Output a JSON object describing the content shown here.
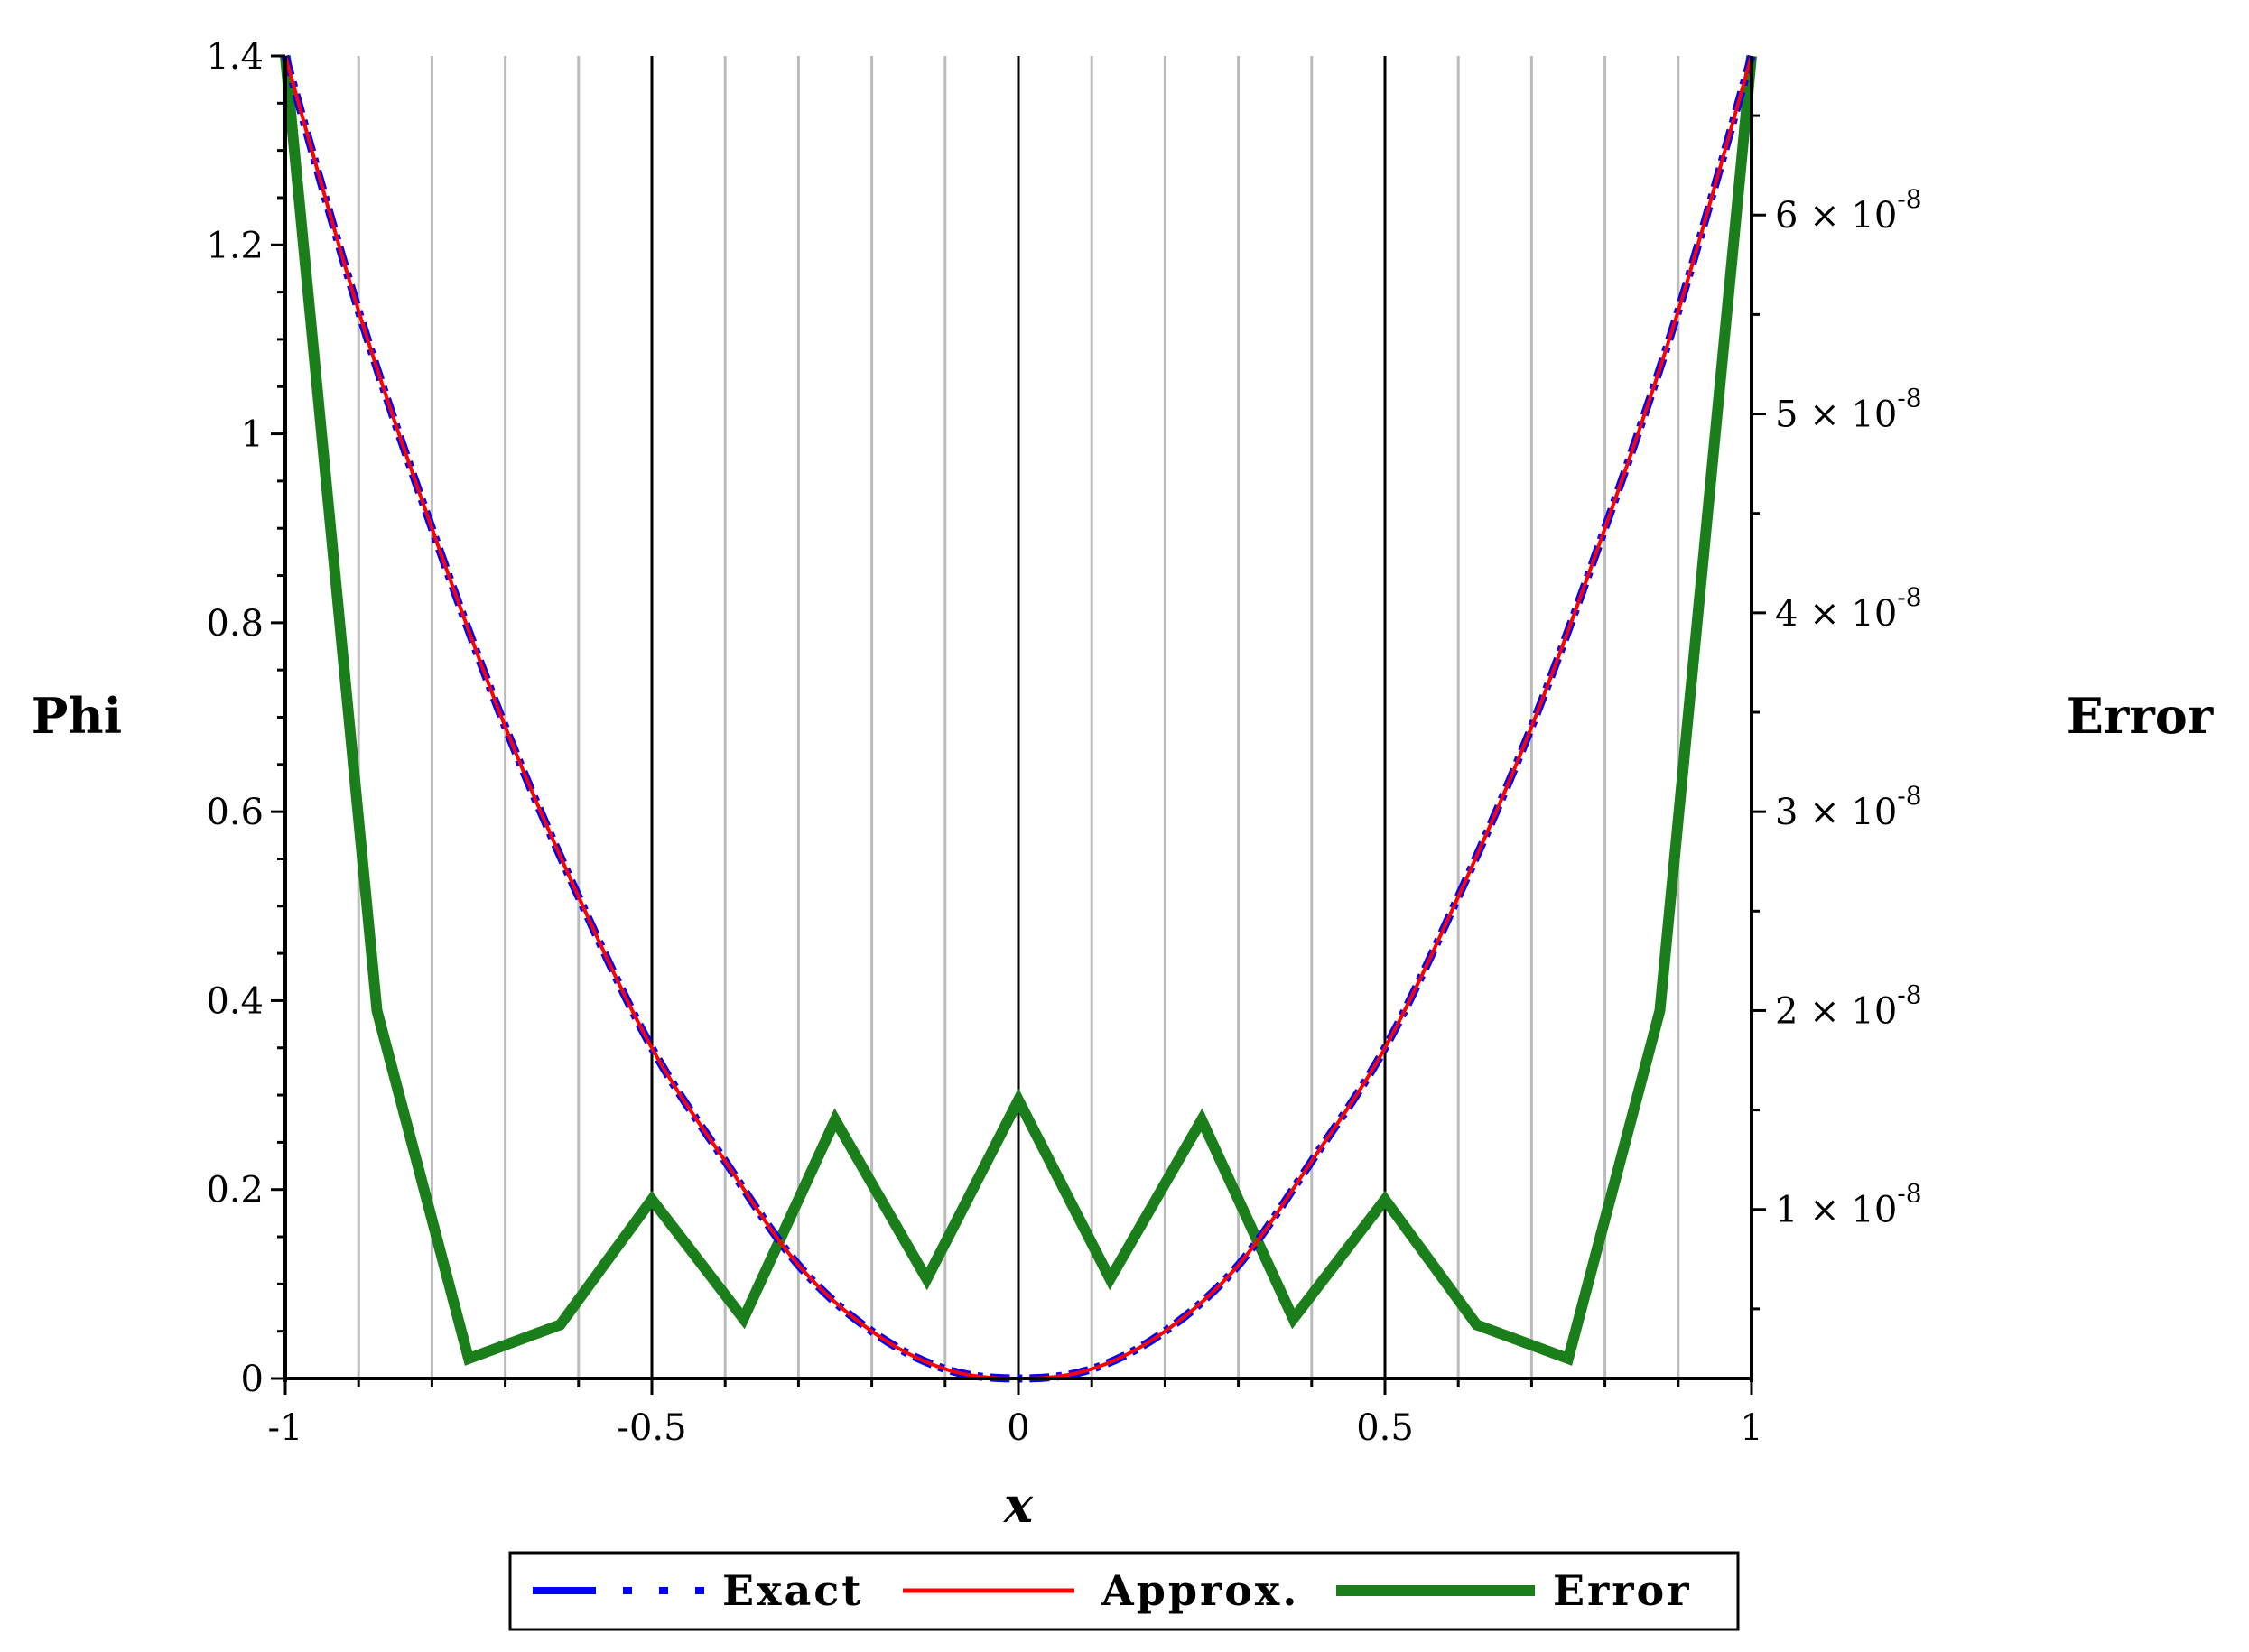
{
  "chart_data": {
    "type": "line",
    "xlabel": "x",
    "ylabel_left": "Phi",
    "ylabel_right": "Error",
    "xlim": [
      -1,
      1
    ],
    "ylim_left": [
      0,
      1.4
    ],
    "ylim_right": [
      0.15,
      6.8
    ],
    "grid": true,
    "legend_placement": "bottom",
    "colors": {
      "exact": "#0000ff",
      "approx": "#ff0000",
      "error": "#1a7f1a",
      "major_grid": "#000000",
      "minor_grid": "#bbbbbb"
    },
    "x_ticks": [
      {
        "value": -1,
        "label": "-1"
      },
      {
        "value": -0.5,
        "label": "-0.5"
      },
      {
        "value": 0,
        "label": "0"
      },
      {
        "value": 0.5,
        "label": "0.5"
      },
      {
        "value": 1,
        "label": "1"
      }
    ],
    "y_ticks_left": [
      {
        "value": 0,
        "label": "0"
      },
      {
        "value": 0.2,
        "label": "0.2"
      },
      {
        "value": 0.4,
        "label": "0.4"
      },
      {
        "value": 0.6,
        "label": "0.6"
      },
      {
        "value": 0.8,
        "label": "0.8"
      },
      {
        "value": 1.0,
        "label": "1"
      },
      {
        "value": 1.2,
        "label": "1.2"
      },
      {
        "value": 1.4,
        "label": "1.4"
      }
    ],
    "y_ticks_right": [
      {
        "value": 1,
        "mantissa": "1",
        "times": "×",
        "base": "10",
        "exponent": "-8"
      },
      {
        "value": 2,
        "mantissa": "2",
        "times": "×",
        "base": "10",
        "exponent": "-8"
      },
      {
        "value": 3,
        "mantissa": "3",
        "times": "×",
        "base": "10",
        "exponent": "-8"
      },
      {
        "value": 4,
        "mantissa": "4",
        "times": "×",
        "base": "10",
        "exponent": "-8"
      },
      {
        "value": 5,
        "mantissa": "5",
        "times": "×",
        "base": "10",
        "exponent": "-8"
      },
      {
        "value": 6,
        "mantissa": "6",
        "times": "×",
        "base": "10",
        "exponent": "-8"
      }
    ],
    "series": [
      {
        "key": "exact",
        "name": "Exact",
        "axis": "left",
        "style": "dash-dot",
        "x": [
          -1,
          -0.9,
          -0.8,
          -0.7,
          -0.6,
          -0.5,
          -0.4,
          -0.3,
          -0.2,
          -0.1,
          0,
          0.1,
          0.2,
          0.3,
          0.4,
          0.5,
          0.6,
          0.7,
          0.8,
          0.9,
          1
        ],
        "y": [
          1.4,
          1.13,
          0.9,
          0.69,
          0.51,
          0.35,
          0.23,
          0.12,
          0.05,
          0.01,
          0.0,
          0.01,
          0.05,
          0.12,
          0.23,
          0.35,
          0.51,
          0.69,
          0.9,
          1.13,
          1.4
        ]
      },
      {
        "key": "approx",
        "name": "Approx.",
        "axis": "left",
        "style": "solid",
        "x": [
          -1,
          -0.9,
          -0.8,
          -0.7,
          -0.6,
          -0.5,
          -0.4,
          -0.3,
          -0.2,
          -0.1,
          0,
          0.1,
          0.2,
          0.3,
          0.4,
          0.5,
          0.6,
          0.7,
          0.8,
          0.9,
          1
        ],
        "y": [
          1.4,
          1.13,
          0.9,
          0.69,
          0.51,
          0.35,
          0.23,
          0.12,
          0.05,
          0.01,
          0.0,
          0.01,
          0.05,
          0.12,
          0.23,
          0.35,
          0.51,
          0.69,
          0.9,
          1.13,
          1.4
        ]
      },
      {
        "key": "error",
        "name": "Error",
        "axis": "right",
        "style": "solid-thick",
        "x": [
          -1,
          -0.875,
          -0.75,
          -0.625,
          -0.5,
          -0.375,
          -0.25,
          -0.125,
          0,
          0.125,
          0.25,
          0.375,
          0.5,
          0.625,
          0.75,
          0.875,
          1
        ],
        "y": [
          6.8,
          2.0,
          0.25,
          0.42,
          1.05,
          0.45,
          1.45,
          0.65,
          1.55,
          0.65,
          1.45,
          0.45,
          1.05,
          0.42,
          0.25,
          2.0,
          6.8
        ]
      }
    ]
  }
}
